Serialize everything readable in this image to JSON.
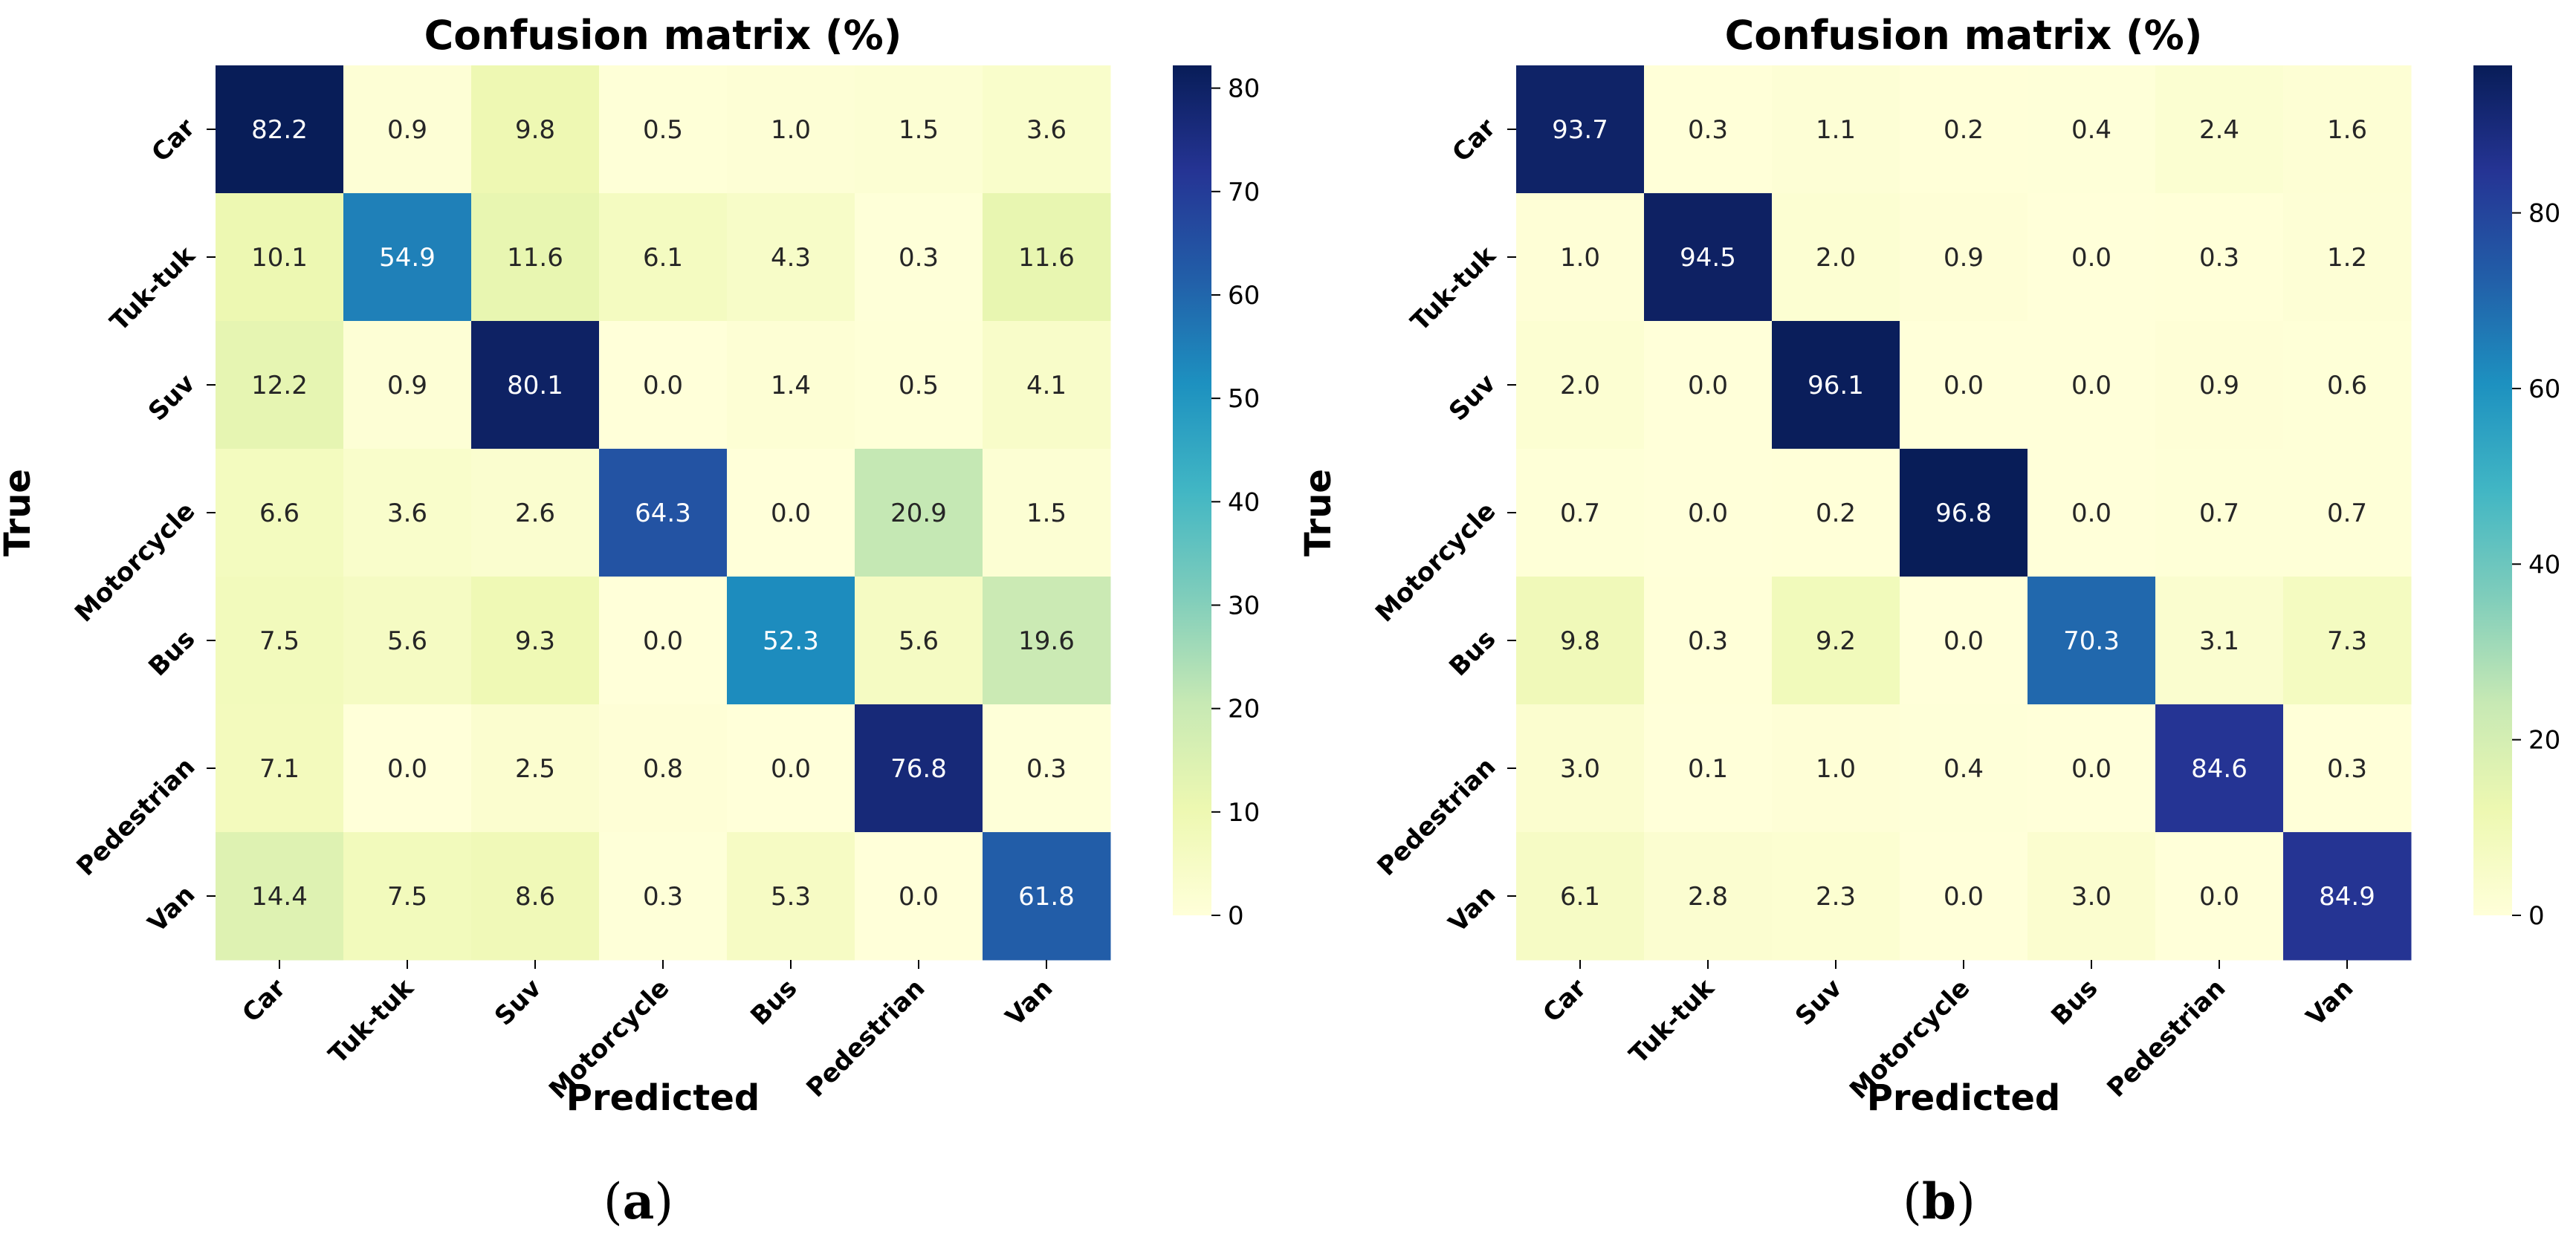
{
  "chart_data": [
    {
      "type": "heatmap",
      "panel_label": "a",
      "title": "Confusion matrix (%)",
      "xlabel": "Predicted",
      "ylabel": "True",
      "x_categories": [
        "Car",
        "Tuk-tuk",
        "Suv",
        "Motorcycle",
        "Bus",
        "Pedestrian",
        "Van"
      ],
      "y_categories": [
        "Car",
        "Tuk-tuk",
        "Suv",
        "Motorcycle",
        "Bus",
        "Pedestrian",
        "Van"
      ],
      "values": [
        [
          82.2,
          0.9,
          9.8,
          0.5,
          1.0,
          1.5,
          3.6
        ],
        [
          10.1,
          54.9,
          11.6,
          6.1,
          4.3,
          0.3,
          11.6
        ],
        [
          12.2,
          0.9,
          80.1,
          0.0,
          1.4,
          0.5,
          4.1
        ],
        [
          6.6,
          3.6,
          2.6,
          64.3,
          0.0,
          20.9,
          1.5
        ],
        [
          7.5,
          5.6,
          9.3,
          0.0,
          52.3,
          5.6,
          19.6
        ],
        [
          7.1,
          0.0,
          2.5,
          0.8,
          0.0,
          76.8,
          0.3
        ],
        [
          14.4,
          7.5,
          8.6,
          0.3,
          5.3,
          0.0,
          61.8
        ]
      ],
      "colorbar": {
        "min": 0,
        "max": 82.2,
        "ticks": [
          0,
          10,
          20,
          30,
          40,
          50,
          60,
          70,
          80
        ]
      },
      "colormap": "YlGnBu"
    },
    {
      "type": "heatmap",
      "panel_label": "b",
      "title": "Confusion matrix (%)",
      "xlabel": "Predicted",
      "ylabel": "True",
      "x_categories": [
        "Car",
        "Tuk-tuk",
        "Suv",
        "Motorcycle",
        "Bus",
        "Pedestrian",
        "Van"
      ],
      "y_categories": [
        "Car",
        "Tuk-tuk",
        "Suv",
        "Motorcycle",
        "Bus",
        "Pedestrian",
        "Van"
      ],
      "values": [
        [
          93.7,
          0.3,
          1.1,
          0.2,
          0.4,
          2.4,
          1.6
        ],
        [
          1.0,
          94.5,
          2.0,
          0.9,
          0.0,
          0.3,
          1.2
        ],
        [
          2.0,
          0.0,
          96.1,
          0.0,
          0.0,
          0.9,
          0.6
        ],
        [
          0.7,
          0.0,
          0.2,
          96.8,
          0.0,
          0.7,
          0.7
        ],
        [
          9.8,
          0.3,
          9.2,
          0.0,
          70.3,
          3.1,
          7.3
        ],
        [
          3.0,
          0.1,
          1.0,
          0.4,
          0.0,
          84.6,
          0.3
        ],
        [
          6.1,
          2.8,
          2.3,
          0.0,
          3.0,
          0.0,
          84.9
        ]
      ],
      "colorbar": {
        "min": 0,
        "max": 96.8,
        "ticks": [
          0,
          20,
          40,
          60,
          80
        ]
      },
      "colormap": "YlGnBu"
    }
  ]
}
